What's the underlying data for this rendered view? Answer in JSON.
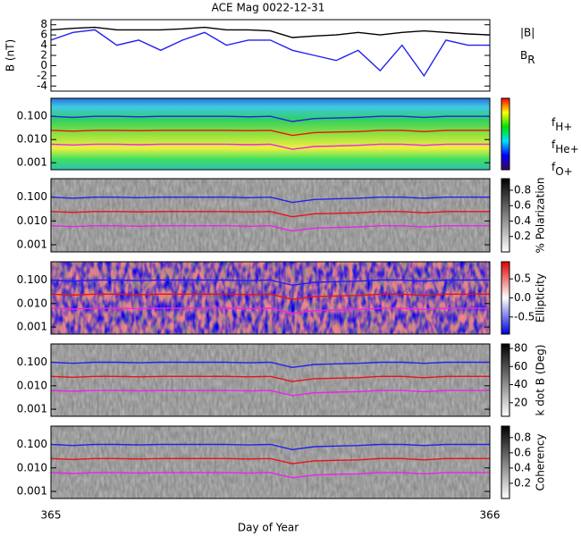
{
  "chart_data": [
    {
      "type": "line",
      "title": "ACE Mag 0022-12-31",
      "ylabel": "B (nT)",
      "xlabel": "Day of Year",
      "x": [
        365,
        365.05,
        365.1,
        365.15,
        365.2,
        365.25,
        365.3,
        365.35,
        365.4,
        365.45,
        365.5,
        365.55,
        365.6,
        365.65,
        365.7,
        365.75,
        365.8,
        365.85,
        365.9,
        365.95,
        366
      ],
      "xlim": [
        365,
        366
      ],
      "xticks": [
        365,
        366
      ],
      "ylim": [
        -5,
        9
      ],
      "yticks": [
        -4,
        -2,
        0,
        2,
        4,
        6,
        8
      ],
      "series": [
        {
          "name": "|B|",
          "color": "#000000",
          "values": [
            7,
            7.3,
            7.5,
            7,
            7,
            7,
            7.2,
            7.5,
            7,
            7,
            6.8,
            5.5,
            5.8,
            6,
            6.5,
            6,
            6.5,
            6.8,
            6.5,
            6.2,
            6
          ]
        },
        {
          "name": "BR",
          "color": "#2222ee",
          "values": [
            5,
            6.5,
            7,
            4,
            5,
            3,
            5,
            6.5,
            4,
            5,
            5,
            3,
            2,
            1,
            3,
            -1,
            4,
            -2,
            5,
            4,
            4
          ]
        }
      ]
    },
    {
      "type": "spectrogram",
      "log": true,
      "background": "rainbow",
      "legend": true,
      "x": [
        365,
        365.05,
        365.1,
        365.15,
        365.2,
        365.25,
        365.3,
        365.35,
        365.4,
        365.45,
        365.5,
        365.55,
        365.6,
        365.65,
        365.7,
        365.75,
        365.8,
        365.85,
        365.9,
        365.95,
        366
      ],
      "ylim": [
        0.0005,
        0.6
      ],
      "yticks": [
        0.001,
        {
          "value": 0.01,
          "label": "0.010"
        },
        {
          "value": 0.1,
          "label": "0.100"
        }
      ],
      "series": [
        {
          "name": "fH+",
          "color": "#2222ee",
          "values": [
            0.1,
            0.09,
            0.1,
            0.1,
            0.095,
            0.1,
            0.1,
            0.1,
            0.1,
            0.095,
            0.1,
            0.06,
            0.08,
            0.085,
            0.09,
            0.1,
            0.1,
            0.09,
            0.1,
            0.1,
            0.1
          ]
        },
        {
          "name": "fHe+",
          "color": "#ee1111",
          "values": [
            0.025,
            0.023,
            0.025,
            0.025,
            0.024,
            0.025,
            0.025,
            0.025,
            0.025,
            0.024,
            0.025,
            0.015,
            0.02,
            0.021,
            0.022,
            0.025,
            0.025,
            0.022,
            0.025,
            0.025,
            0.025
          ]
        },
        {
          "name": "fO+",
          "color": "#ee22ee",
          "values": [
            0.0063,
            0.0058,
            0.0063,
            0.0063,
            0.006,
            0.0063,
            0.0063,
            0.0063,
            0.0063,
            0.006,
            0.0063,
            0.0038,
            0.005,
            0.0053,
            0.0056,
            0.0063,
            0.0063,
            0.0056,
            0.0063,
            0.0063,
            0.0063
          ]
        }
      ]
    },
    {
      "type": "spectrogram",
      "log": true,
      "background": "gray",
      "colorbar_label": "% Polarization",
      "clim": [
        0,
        0.95
      ],
      "cticks": [
        0.2,
        0.4,
        0.6,
        0.8
      ],
      "x": [
        365,
        365.05,
        365.1,
        365.15,
        365.2,
        365.25,
        365.3,
        365.35,
        365.4,
        365.45,
        365.5,
        365.55,
        365.6,
        365.65,
        365.7,
        365.75,
        365.8,
        365.85,
        365.9,
        365.95,
        366
      ],
      "ylim": [
        0.0005,
        0.6
      ],
      "yticks": [
        0.001,
        {
          "value": 0.01,
          "label": "0.010"
        },
        {
          "value": 0.1,
          "label": "0.100"
        }
      ],
      "series": [
        {
          "color": "#2222ee",
          "values": [
            0.1,
            0.09,
            0.1,
            0.1,
            0.095,
            0.1,
            0.1,
            0.1,
            0.1,
            0.095,
            0.1,
            0.06,
            0.08,
            0.085,
            0.09,
            0.1,
            0.1,
            0.09,
            0.1,
            0.1,
            0.1
          ]
        },
        {
          "color": "#ee1111",
          "values": [
            0.025,
            0.023,
            0.025,
            0.025,
            0.024,
            0.025,
            0.025,
            0.025,
            0.025,
            0.024,
            0.025,
            0.015,
            0.02,
            0.021,
            0.022,
            0.025,
            0.025,
            0.022,
            0.025,
            0.025,
            0.025
          ]
        },
        {
          "color": "#ee22ee",
          "values": [
            0.0063,
            0.0058,
            0.0063,
            0.0063,
            0.006,
            0.0063,
            0.0063,
            0.0063,
            0.0063,
            0.006,
            0.0063,
            0.0038,
            0.005,
            0.0053,
            0.0056,
            0.0063,
            0.0063,
            0.0056,
            0.0063,
            0.0063,
            0.0063
          ]
        }
      ]
    },
    {
      "type": "spectrogram",
      "log": true,
      "background": "diverging",
      "colorbar_label": "Ellipticity",
      "clim": [
        -0.95,
        0.95
      ],
      "cticks": [
        -0.5,
        {
          "value": 0,
          "label": "0.0"
        },
        0.5
      ],
      "x": [
        365,
        365.05,
        365.1,
        365.15,
        365.2,
        365.25,
        365.3,
        365.35,
        365.4,
        365.45,
        365.5,
        365.55,
        365.6,
        365.65,
        365.7,
        365.75,
        365.8,
        365.85,
        365.9,
        365.95,
        366
      ],
      "ylim": [
        0.0005,
        0.6
      ],
      "yticks": [
        0.001,
        {
          "value": 0.01,
          "label": "0.010"
        },
        {
          "value": 0.1,
          "label": "0.100"
        }
      ],
      "series": [
        {
          "color": "#2222ee",
          "values": [
            0.1,
            0.09,
            0.1,
            0.1,
            0.095,
            0.1,
            0.1,
            0.1,
            0.1,
            0.095,
            0.1,
            0.06,
            0.08,
            0.085,
            0.09,
            0.1,
            0.1,
            0.09,
            0.1,
            0.1,
            0.1
          ]
        },
        {
          "color": "#ee1111",
          "values": [
            0.025,
            0.023,
            0.025,
            0.025,
            0.024,
            0.025,
            0.025,
            0.025,
            0.025,
            0.024,
            0.025,
            0.015,
            0.02,
            0.021,
            0.022,
            0.025,
            0.025,
            0.022,
            0.025,
            0.025,
            0.025
          ]
        },
        {
          "color": "#ee22ee",
          "values": [
            0.0063,
            0.0058,
            0.0063,
            0.0063,
            0.006,
            0.0063,
            0.0063,
            0.0063,
            0.0063,
            0.006,
            0.0063,
            0.0038,
            0.005,
            0.0053,
            0.0056,
            0.0063,
            0.0063,
            0.0056,
            0.0063,
            0.0063,
            0.0063
          ]
        }
      ]
    },
    {
      "type": "spectrogram",
      "log": true,
      "background": "gray",
      "colorbar_label": "k dot B (Deg)",
      "clim": [
        5,
        85
      ],
      "cticks": [
        20,
        40,
        60,
        80
      ],
      "x": [
        365,
        365.05,
        365.1,
        365.15,
        365.2,
        365.25,
        365.3,
        365.35,
        365.4,
        365.45,
        365.5,
        365.55,
        365.6,
        365.65,
        365.7,
        365.75,
        365.8,
        365.85,
        365.9,
        365.95,
        366
      ],
      "ylim": [
        0.0005,
        0.6
      ],
      "yticks": [
        0.001,
        {
          "value": 0.01,
          "label": "0.010"
        },
        {
          "value": 0.1,
          "label": "0.100"
        }
      ],
      "series": [
        {
          "color": "#2222ee",
          "values": [
            0.1,
            0.09,
            0.1,
            0.1,
            0.095,
            0.1,
            0.1,
            0.1,
            0.1,
            0.095,
            0.1,
            0.06,
            0.08,
            0.085,
            0.09,
            0.1,
            0.1,
            0.09,
            0.1,
            0.1,
            0.1
          ]
        },
        {
          "color": "#ee1111",
          "values": [
            0.025,
            0.023,
            0.025,
            0.025,
            0.024,
            0.025,
            0.025,
            0.025,
            0.025,
            0.024,
            0.025,
            0.015,
            0.02,
            0.021,
            0.022,
            0.025,
            0.025,
            0.022,
            0.025,
            0.025,
            0.025
          ]
        },
        {
          "color": "#ee22ee",
          "values": [
            0.0063,
            0.0058,
            0.0063,
            0.0063,
            0.006,
            0.0063,
            0.0063,
            0.0063,
            0.0063,
            0.006,
            0.0063,
            0.0038,
            0.005,
            0.0053,
            0.0056,
            0.0063,
            0.0063,
            0.0056,
            0.0063,
            0.0063,
            0.0063
          ]
        }
      ]
    },
    {
      "type": "spectrogram",
      "log": true,
      "background": "gray",
      "colorbar_label": "Coherency",
      "clim": [
        0,
        0.95
      ],
      "cticks": [
        0.2,
        0.4,
        0.6,
        0.8
      ],
      "x": [
        365,
        365.05,
        365.1,
        365.15,
        365.2,
        365.25,
        365.3,
        365.35,
        365.4,
        365.45,
        365.5,
        365.55,
        365.6,
        365.65,
        365.7,
        365.75,
        365.8,
        365.85,
        365.9,
        365.95,
        366
      ],
      "ylim": [
        0.0005,
        0.6
      ],
      "yticks": [
        0.001,
        {
          "value": 0.01,
          "label": "0.010"
        },
        {
          "value": 0.1,
          "label": "0.100"
        }
      ],
      "series": [
        {
          "color": "#2222ee",
          "values": [
            0.1,
            0.09,
            0.1,
            0.1,
            0.095,
            0.1,
            0.1,
            0.1,
            0.1,
            0.095,
            0.1,
            0.06,
            0.08,
            0.085,
            0.09,
            0.1,
            0.1,
            0.09,
            0.1,
            0.1,
            0.1
          ]
        },
        {
          "color": "#ee1111",
          "values": [
            0.025,
            0.023,
            0.025,
            0.025,
            0.024,
            0.025,
            0.025,
            0.025,
            0.025,
            0.024,
            0.025,
            0.015,
            0.02,
            0.021,
            0.022,
            0.025,
            0.025,
            0.022,
            0.025,
            0.025,
            0.025
          ]
        },
        {
          "color": "#ee22ee",
          "values": [
            0.0063,
            0.0058,
            0.0063,
            0.0063,
            0.006,
            0.0063,
            0.0063,
            0.0063,
            0.0063,
            0.006,
            0.0063,
            0.0038,
            0.005,
            0.0053,
            0.0056,
            0.0063,
            0.0063,
            0.0056,
            0.0063,
            0.0063,
            0.0063
          ]
        }
      ]
    }
  ]
}
